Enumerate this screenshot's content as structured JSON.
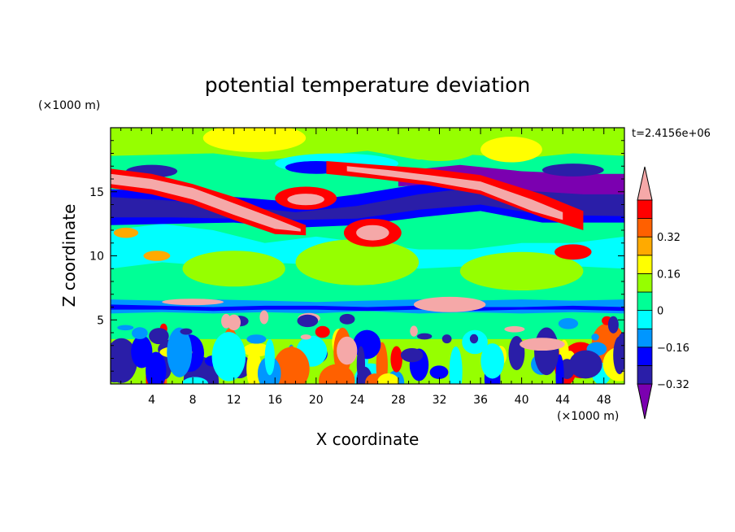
{
  "chart_data": {
    "type": "heatmap",
    "title": "potential temperature deviation",
    "xlabel": "X coordinate",
    "ylabel": "Z coordinate",
    "x_unit": "(×1000 m)",
    "y_unit": "(×1000 m)",
    "time_label": "t=2.4156e+06",
    "xlim": [
      0,
      50
    ],
    "ylim": [
      0,
      20
    ],
    "x_ticks": [
      4,
      8,
      12,
      16,
      20,
      24,
      28,
      32,
      36,
      40,
      44,
      48
    ],
    "y_ticks": [
      5,
      10,
      15
    ],
    "x_tick_labels": [
      "4",
      "8",
      "12",
      "16",
      "20",
      "24",
      "28",
      "32",
      "36",
      "40",
      "44",
      "48"
    ],
    "y_tick_labels": [
      "5",
      "10",
      "15"
    ],
    "colorbar": {
      "labels": [
        {
          "value": 0.32,
          "text": "0.32"
        },
        {
          "value": 0.16,
          "text": "0.16"
        },
        {
          "value": 0,
          "text": "0"
        },
        {
          "value": -0.16,
          "text": "−0.16"
        },
        {
          "value": -0.32,
          "text": "−0.32"
        }
      ],
      "min": -0.4,
      "max": 0.4,
      "level_step": 0.08,
      "colors_low_to_high": [
        "#7b00b0",
        "#2a1ea8",
        "#0000ff",
        "#0096ff",
        "#00ffff",
        "#00ff96",
        "#96ff00",
        "#ffff00",
        "#ffaa00",
        "#ff6000",
        "#ff0000",
        "#f5a8a8"
      ]
    },
    "features": [
      {
        "kind": "band",
        "x": [
          0,
          50
        ],
        "z": [
          15.5,
          16.8
        ],
        "sign": "positive",
        "desc": "upper warm layer"
      },
      {
        "kind": "band",
        "x": [
          0,
          50
        ],
        "z": [
          12.5,
          14.8
        ],
        "sign": "negative",
        "desc": "cold layer"
      },
      {
        "kind": "blob",
        "x": 25.5,
        "z": 11.8,
        "sign": "positive"
      },
      {
        "kind": "blob",
        "x": 19,
        "z": 14.3,
        "sign": "positive"
      },
      {
        "kind": "blob",
        "x": 45,
        "z": 10.3,
        "sign": "positive"
      },
      {
        "kind": "band",
        "x": [
          0,
          50
        ],
        "z": [
          5.5,
          6.5
        ],
        "sign": "negative",
        "desc": "thin layer"
      },
      {
        "kind": "convection",
        "x": [
          0,
          50
        ],
        "z": [
          0,
          3.5
        ],
        "sign": "mixed"
      }
    ]
  },
  "colors": {
    "background": "#ffffff",
    "axis": "#000000"
  }
}
